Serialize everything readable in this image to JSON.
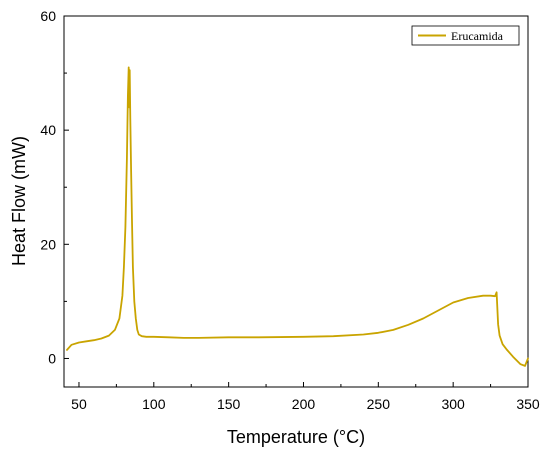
{
  "chart_data": {
    "type": "line",
    "title": "",
    "xlabel": "Temperature (°C)",
    "ylabel": "Heat Flow (mW)",
    "xlim": [
      40,
      350
    ],
    "ylim": [
      -5,
      60
    ],
    "xticks": [
      50,
      100,
      150,
      200,
      250,
      300,
      350
    ],
    "yticks": [
      0,
      20,
      40,
      60
    ],
    "grid": false,
    "legend_position": "top-right",
    "series": [
      {
        "name": "Erucamida",
        "color": "#C9A400",
        "x": [
          42,
          45,
          50,
          55,
          60,
          65,
          70,
          74,
          77,
          79,
          80,
          81,
          82,
          82.7,
          83.2,
          83.5,
          83.9,
          84.3,
          84.8,
          85.4,
          86,
          87,
          88,
          89,
          90,
          92,
          95,
          100,
          110,
          120,
          130,
          150,
          170,
          200,
          220,
          240,
          250,
          260,
          270,
          280,
          290,
          300,
          310,
          320,
          325,
          328,
          329,
          330,
          331,
          333,
          336,
          340,
          345,
          348,
          350
        ],
        "y": [
          1.5,
          2.4,
          2.8,
          3.0,
          3.2,
          3.5,
          4.0,
          5.0,
          7.0,
          11.0,
          16.0,
          23.0,
          35.0,
          46.0,
          51.0,
          44.0,
          50.5,
          42.0,
          33.0,
          24.0,
          16.0,
          10.0,
          7.0,
          5.0,
          4.2,
          3.9,
          3.8,
          3.8,
          3.7,
          3.6,
          3.6,
          3.7,
          3.7,
          3.8,
          3.9,
          4.2,
          4.5,
          5.0,
          5.9,
          7.0,
          8.4,
          9.8,
          10.6,
          11.0,
          11.0,
          10.9,
          11.6,
          6.0,
          4.0,
          2.5,
          1.5,
          0.3,
          -1.0,
          -1.3,
          0.0
        ]
      }
    ]
  }
}
